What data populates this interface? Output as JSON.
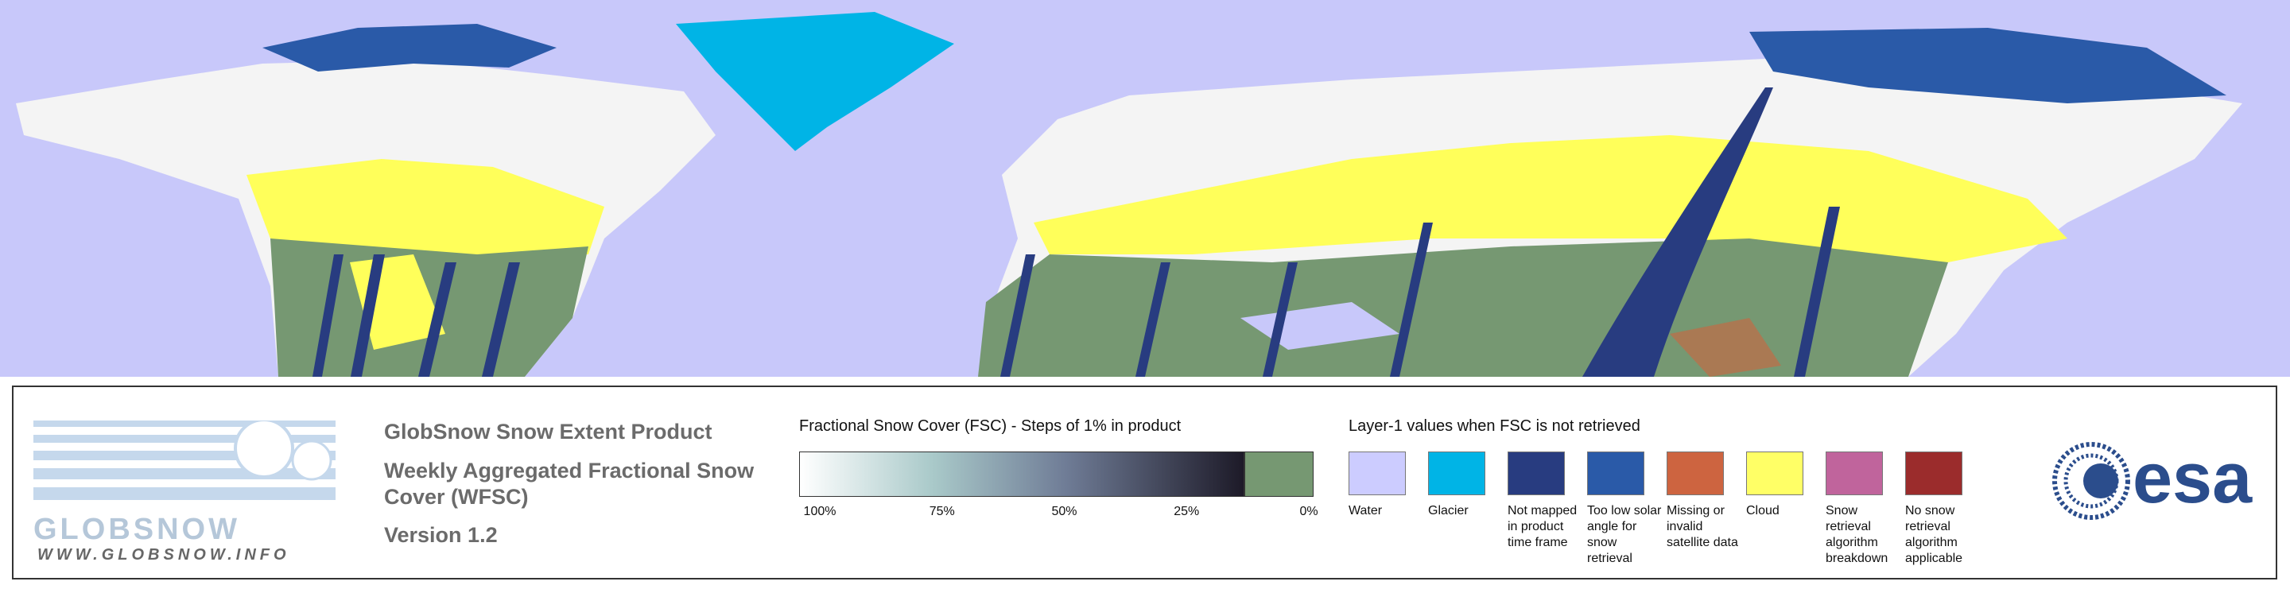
{
  "logo": {
    "name": "GLOBSNOW",
    "url": "WWW.GLOBSNOW.INFO"
  },
  "header": {
    "title": "GlobSnow Snow Extent Product",
    "subtitle": "Weekly Aggregated Fractional Snow Cover (WFSC)",
    "version": "Version 1.2"
  },
  "colorbar": {
    "title": "Fractional Snow Cover (FSC) - Steps of 1% in product",
    "labels": [
      "100%",
      "75%",
      "50%",
      "25%",
      "0%"
    ]
  },
  "layer1": {
    "title": "Layer-1 values when FSC is not retrieved",
    "items": [
      {
        "label": "Water",
        "color": "#ccccff"
      },
      {
        "label": "Glacier",
        "color": "#00b4e6"
      },
      {
        "label": "Not mapped in product time frame",
        "color": "#283c80"
      },
      {
        "label": "Too low solar angle for snow retrieval",
        "color": "#2a5aa8"
      },
      {
        "label": "Missing or invalid satellite data",
        "color": "#cd6440"
      },
      {
        "label": "Cloud",
        "color": "#ffff66"
      },
      {
        "label": "Snow retrieval algorithm breakdown",
        "color": "#c0649c"
      },
      {
        "label": "No snow retrieval algorithm applicable",
        "color": "#9b2c2c"
      }
    ]
  },
  "agency": "esa"
}
